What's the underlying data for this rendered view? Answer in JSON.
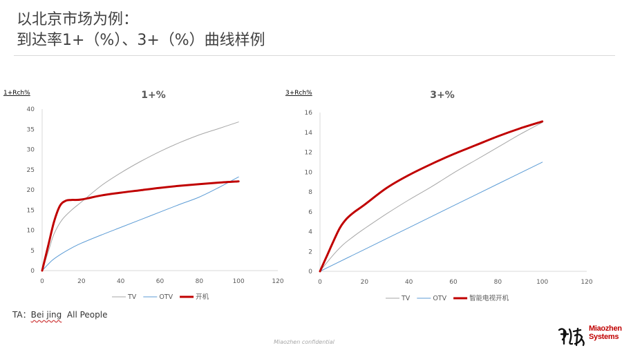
{
  "slide": {
    "title_line1": "以北京市场为例：",
    "title_line2": "到达率1+（%）、3+（%）曲线样例",
    "ta_prefix": "TA：",
    "ta_city": "Bei jing",
    "ta_suffix": "All People",
    "footer": "Miaozhen confidential",
    "logo_line1": "Miaozhen",
    "logo_line2": "Systems"
  },
  "colors": {
    "tv": "#a6a6a6",
    "otv": "#5b9bd5",
    "highlight": "#c00000",
    "axis": "#d9d9d9"
  },
  "chart_data": [
    {
      "type": "line",
      "title": "1+%",
      "ylabel": "1+Rch%",
      "xlim": [
        0,
        120
      ],
      "ylim": [
        0,
        40
      ],
      "xticks": [
        0,
        20,
        40,
        60,
        80,
        100,
        120
      ],
      "yticks": [
        0,
        5,
        10,
        15,
        20,
        25,
        30,
        35,
        40
      ],
      "grid": false,
      "legend_position": "bottom",
      "series": [
        {
          "name": "TV",
          "color": "#a6a6a6",
          "width": 1,
          "x": [
            0,
            3,
            6,
            10,
            15,
            20,
            30,
            40,
            50,
            60,
            70,
            80,
            90,
            100
          ],
          "y": [
            0,
            4.5,
            9,
            12.5,
            15,
            17,
            21,
            24.2,
            27,
            29.5,
            31.7,
            33.6,
            35.2,
            36.8
          ]
        },
        {
          "name": "OTV",
          "color": "#5b9bd5",
          "width": 1,
          "x": [
            0,
            5,
            10,
            15,
            20,
            30,
            40,
            50,
            60,
            70,
            80,
            90,
            100
          ],
          "y": [
            0,
            2.5,
            4.2,
            5.6,
            6.8,
            8.8,
            10.7,
            12.6,
            14.5,
            16.4,
            18.2,
            20.6,
            23.2
          ]
        },
        {
          "name": "开机",
          "color": "#c00000",
          "width": 3,
          "x": [
            0,
            3,
            6,
            9,
            12,
            15,
            20,
            30,
            40,
            50,
            60,
            70,
            80,
            90,
            100
          ],
          "y": [
            0,
            6,
            12,
            16,
            17.3,
            17.5,
            17.6,
            18.6,
            19.3,
            19.9,
            20.5,
            21,
            21.4,
            21.8,
            22.1
          ]
        }
      ]
    },
    {
      "type": "line",
      "title": "3+%",
      "ylabel": "3+Rch%",
      "xlim": [
        0,
        120
      ],
      "ylim": [
        0,
        16
      ],
      "xticks": [
        0,
        20,
        40,
        60,
        80,
        100,
        120
      ],
      "yticks": [
        0,
        2,
        4,
        6,
        8,
        10,
        12,
        14,
        16
      ],
      "grid": false,
      "legend_position": "bottom",
      "series": [
        {
          "name": "TV",
          "color": "#a6a6a6",
          "width": 1,
          "x": [
            0,
            5,
            10,
            15,
            20,
            30,
            40,
            50,
            60,
            70,
            80,
            90,
            100
          ],
          "y": [
            0,
            1.4,
            2.6,
            3.5,
            4.3,
            5.8,
            7.2,
            8.5,
            9.9,
            11.2,
            12.5,
            13.8,
            15
          ]
        },
        {
          "name": "OTV",
          "color": "#5b9bd5",
          "width": 1,
          "x": [
            0,
            20,
            40,
            60,
            80,
            100
          ],
          "y": [
            0,
            2.2,
            4.4,
            6.6,
            8.8,
            11
          ]
        },
        {
          "name": "智能电视开机",
          "color": "#c00000",
          "width": 3,
          "x": [
            0,
            3,
            6,
            9,
            12,
            15,
            20,
            30,
            40,
            50,
            60,
            70,
            80,
            90,
            100
          ],
          "y": [
            0,
            1.5,
            3,
            4.4,
            5.3,
            5.9,
            6.7,
            8.4,
            9.7,
            10.8,
            11.8,
            12.7,
            13.6,
            14.4,
            15.1
          ]
        }
      ]
    }
  ]
}
